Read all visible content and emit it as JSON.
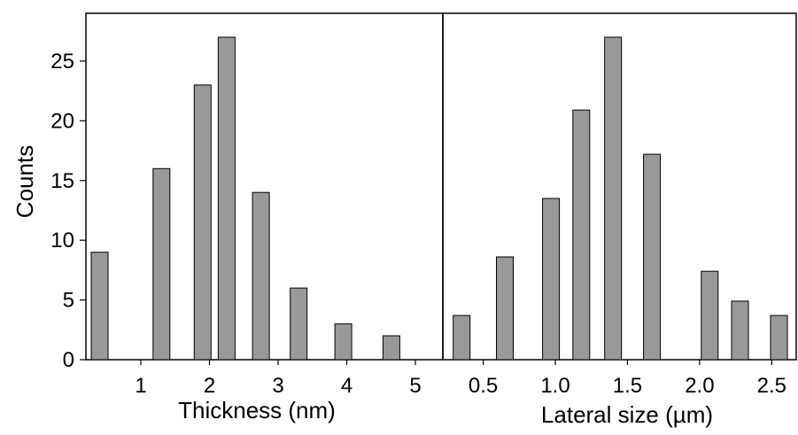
{
  "chart_data": [
    {
      "type": "bar",
      "xlabel": "Thickness (nm)",
      "ylabel": "Counts",
      "ylim": [
        0,
        29
      ],
      "xlim": [
        0.2,
        5.4
      ],
      "x_ticks": [
        "1",
        "2",
        "3",
        "4",
        "5"
      ],
      "y_ticks": [
        "0",
        "5",
        "10",
        "15",
        "20",
        "25"
      ],
      "bar_color": "#999999",
      "x": [
        0.4,
        1.3,
        1.9,
        2.25,
        2.75,
        3.3,
        3.95,
        4.65
      ],
      "values": [
        9,
        16,
        23,
        27,
        14,
        6,
        3,
        2
      ]
    },
    {
      "type": "bar",
      "xlabel": "Lateral size (µm)",
      "ylim": [
        0,
        29
      ],
      "xlim": [
        0.22,
        2.67
      ],
      "x_ticks": [
        "0.5",
        "1.0",
        "1.5",
        "2.0",
        "2.5"
      ],
      "bar_color": "#999999",
      "x": [
        0.35,
        0.65,
        0.97,
        1.18,
        1.4,
        1.67,
        2.07,
        2.28,
        2.55
      ],
      "values": [
        3.7,
        8.6,
        13.5,
        20.9,
        27,
        17.2,
        7.4,
        4.9,
        3.7
      ]
    }
  ]
}
